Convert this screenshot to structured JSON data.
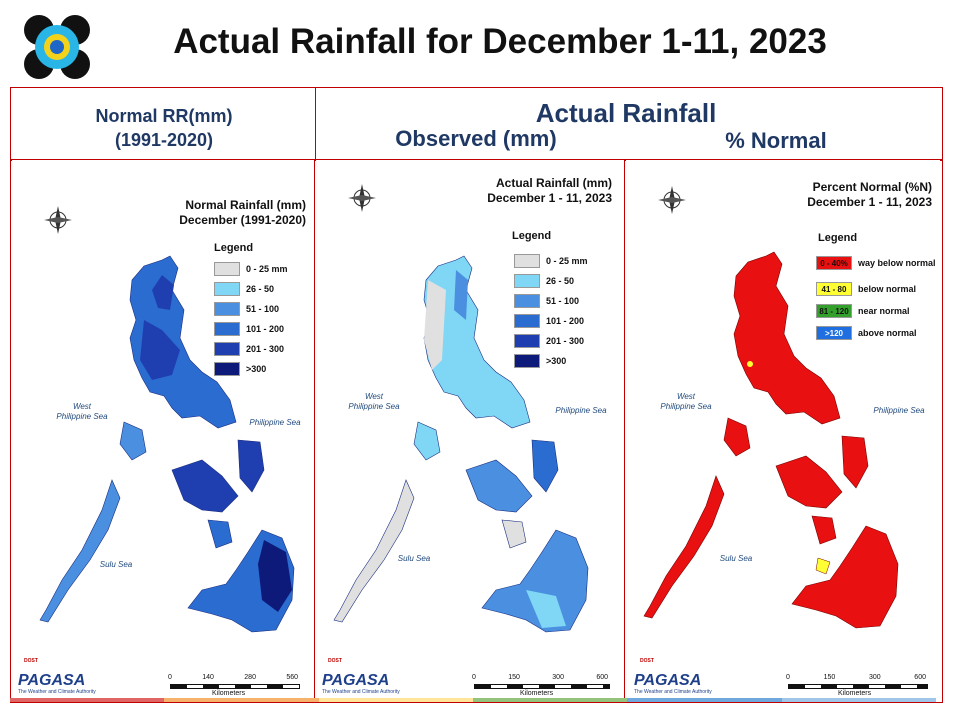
{
  "title": "Actual Rainfall for December 1-11, 2023",
  "headers": {
    "normal": "Normal RR(mm)",
    "normal_period": "(1991-2020)",
    "actual": "Actual Rainfall",
    "observed": "Observed (mm)",
    "percent": "% Normal"
  },
  "panels": [
    {
      "map_title_1": "Normal Rainfall (mm)",
      "map_title_2": "December (1991-2020)",
      "legend_title": "Legend",
      "legend": [
        {
          "label": "0 - 25 mm",
          "color": "#e0e0e0"
        },
        {
          "label": "26 - 50",
          "color": "#7fd6f5"
        },
        {
          "label": "51 - 100",
          "color": "#4a8fe0"
        },
        {
          "label": "101 - 200",
          "color": "#2b6cd1"
        },
        {
          "label": "201 - 300",
          "color": "#1f3fb0"
        },
        {
          "label": ">300",
          "color": "#0d1a7a"
        }
      ],
      "west_sea": "West\nPhilippine Sea",
      "east_sea": "Philippine Sea",
      "south_sea": "Sulu Sea",
      "scale_ticks": [
        "0",
        "140",
        "280",
        "560"
      ],
      "scale_unit": "Kilometers"
    },
    {
      "map_title_1": "Actual Rainfall (mm)",
      "map_title_2": "December 1 - 11, 2023",
      "legend_title": "Legend",
      "legend": [
        {
          "label": "0 - 25 mm",
          "color": "#e0e0e0"
        },
        {
          "label": "26 - 50",
          "color": "#7fd6f5"
        },
        {
          "label": "51 - 100",
          "color": "#4a8fe0"
        },
        {
          "label": "101 - 200",
          "color": "#2b6cd1"
        },
        {
          "label": "201 - 300",
          "color": "#1f3fb0"
        },
        {
          "label": ">300",
          "color": "#0d1a7a"
        }
      ],
      "west_sea": "West\nPhilippine Sea",
      "east_sea": "Philippine Sea",
      "south_sea": "Sulu Sea",
      "scale_ticks": [
        "0",
        "150",
        "300",
        "600"
      ],
      "scale_unit": "Kilometers"
    },
    {
      "map_title_1": "Percent Normal (%N)",
      "map_title_2": "December 1 - 11, 2023",
      "legend_title": "Legend",
      "legend": [
        {
          "swatch": "0 - 40%",
          "label": "way below normal",
          "color": "#e81010"
        },
        {
          "swatch": "41 - 80",
          "label": "below normal",
          "color": "#ffff33"
        },
        {
          "swatch": "81 - 120",
          "label": "near normal",
          "color": "#33a02c"
        },
        {
          "swatch": ">120",
          "label": "above normal",
          "color": "#1f6fe0"
        }
      ],
      "west_sea": "West\nPhilippine Sea",
      "east_sea": "Philippine Sea",
      "south_sea": "Sulu Sea",
      "scale_ticks": [
        "0",
        "150",
        "300",
        "600"
      ],
      "scale_unit": "Kilometers"
    }
  ],
  "compass": {
    "n": "N",
    "s": "S",
    "e": "E",
    "w": "W"
  },
  "footer_logo": {
    "top": "DOST",
    "brand": "PAGASA",
    "tagline": "The Weather and Climate Authority",
    "beyond": "BEYOND"
  },
  "stripe_colors": [
    "#e06666",
    "#f6b26b",
    "#ffe599",
    "#93c47d",
    "#6fa8dc",
    "#9fc5e8"
  ]
}
